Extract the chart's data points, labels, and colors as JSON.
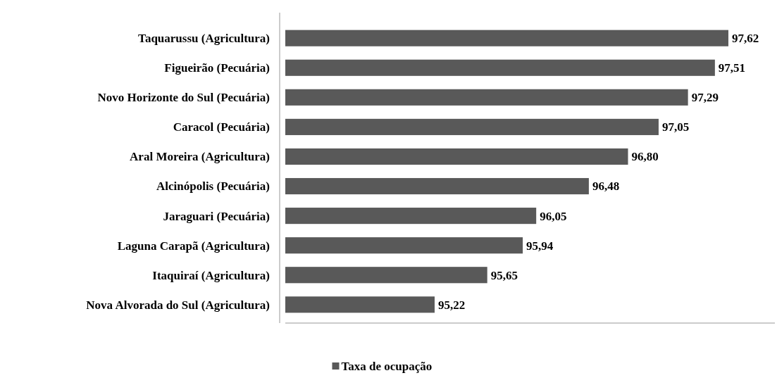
{
  "chart_data": {
    "type": "bar",
    "orientation": "horizontal",
    "categories": [
      "Taquarussu (Agricultura)",
      "Figueirão (Pecuária)",
      "Novo Horizonte do Sul (Pecuária)",
      "Caracol (Pecuária)",
      "Aral Moreira (Agricultura)",
      "Alcinópolis (Pecuária)",
      "Jaraguari (Pecuária)",
      "Laguna Carapã (Agricultura)",
      "Itaquiraí (Agricultura)",
      "Nova Alvorada do Sul (Agricultura)"
    ],
    "series": [
      {
        "name": "Taxa de ocupação",
        "color": "#595959",
        "values": [
          97.62,
          97.51,
          97.29,
          97.05,
          96.8,
          96.48,
          96.05,
          95.94,
          95.65,
          95.22
        ],
        "value_labels": [
          "97,62",
          "97,51",
          "97,29",
          "97,05",
          "96,80",
          "96,48",
          "96,05",
          "95,94",
          "95,65",
          "95,22"
        ]
      }
    ],
    "xlim": [
      94,
      98
    ],
    "tick_labels": "y",
    "legend": "bottom"
  }
}
